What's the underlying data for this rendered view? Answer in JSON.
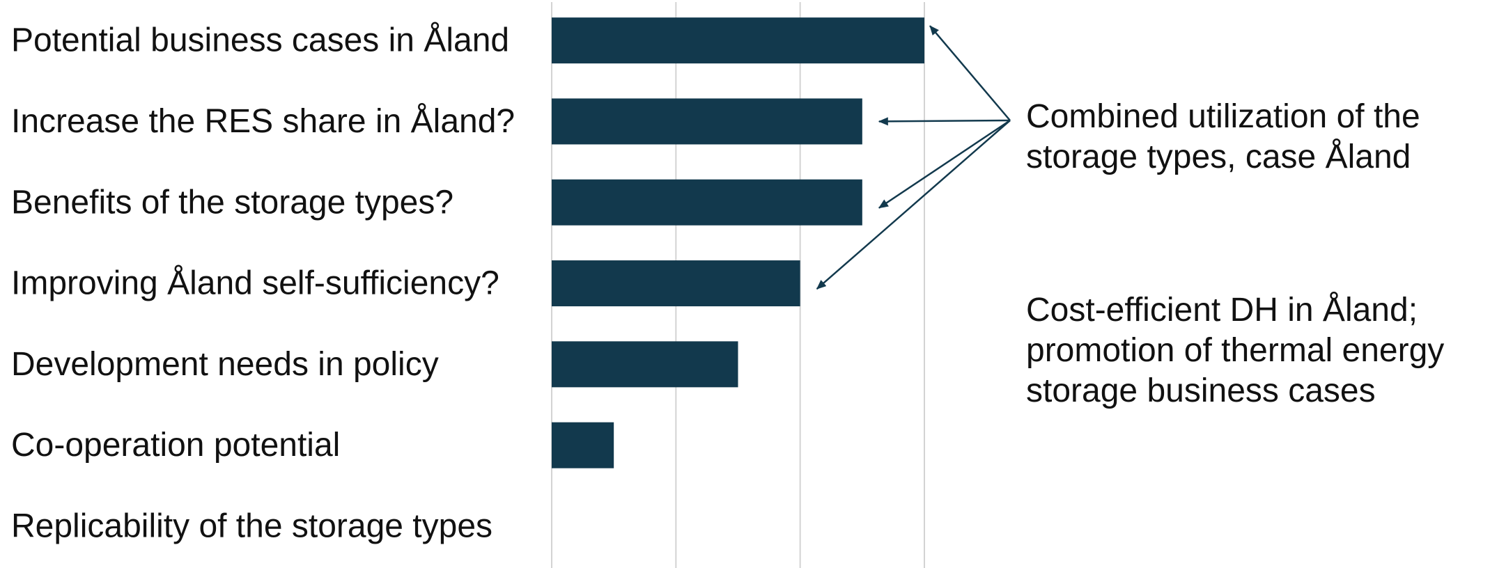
{
  "colors": {
    "bar": "#12394d",
    "grid": "#d3d3d3",
    "arrow": "#12394d",
    "text": "#111111"
  },
  "chart_data": {
    "type": "bar",
    "orientation": "horizontal",
    "title": "",
    "xlabel": "",
    "ylabel": "",
    "xlim": [
      0,
      6
    ],
    "x_ticks": [
      0,
      2,
      4,
      6
    ],
    "x_tick_labels_shown": false,
    "grid": "vertical",
    "legend": "none",
    "categories": [
      "Potential business cases in Åland",
      "Increase the RES share in Åland?",
      "Benefits of the storage types?",
      "Improving Åland self-sufficiency?",
      "Development needs in policy",
      "Co-operation potential",
      "Replicability of the storage types"
    ],
    "values": [
      6,
      5,
      5,
      4,
      3,
      1,
      0
    ],
    "annotations": [
      {
        "lines": [
          "Combined utilization of the",
          "storage types, case Åland"
        ],
        "arrows_to": [
          "Potential business cases in Åland",
          "Increase the RES share in Åland?",
          "Benefits of the storage types?",
          "Improving Åland self-sufficiency?"
        ]
      },
      {
        "lines": [
          "Cost-efficient DH in Åland;",
          "promotion of thermal energy",
          "storage business cases"
        ],
        "arrows_to": []
      }
    ]
  }
}
